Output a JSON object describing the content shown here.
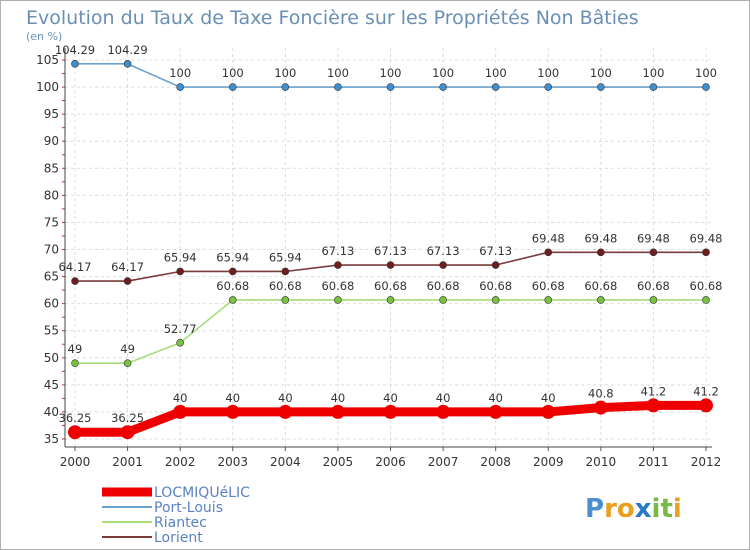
{
  "chart_data": {
    "type": "line",
    "title": "Evolution du Taux de Taxe Foncière sur les Propriétés Non Bâties",
    "ylabel": "(en %)",
    "xlabel": "",
    "ylim": [
      35,
      105
    ],
    "yticks": [
      35,
      40,
      45,
      50,
      55,
      60,
      65,
      70,
      75,
      80,
      85,
      90,
      95,
      100,
      105
    ],
    "grid": true,
    "x": [
      "2000",
      "2001",
      "2002",
      "2003",
      "2004",
      "2005",
      "2006",
      "2007",
      "2008",
      "2009",
      "2010",
      "2011",
      "2012"
    ],
    "series": [
      {
        "name": "LOCMIQUéLIC",
        "color": "#ee0000",
        "emphasis": true,
        "values": [
          36.25,
          36.25,
          40,
          40,
          40,
          40,
          40,
          40,
          40,
          40,
          40.8,
          41.2,
          41.2
        ],
        "labels": [
          "36.25",
          "36.25",
          "40",
          "40",
          "40",
          "40",
          "40",
          "40",
          "40",
          "40",
          "40.8",
          "41.2",
          "41.2"
        ]
      },
      {
        "name": "Port-Louis",
        "color": "#6aa0cc",
        "marker": "#3d8fd0",
        "values": [
          104.29,
          104.29,
          100,
          100,
          100,
          100,
          100,
          100,
          100,
          100,
          100,
          100,
          100
        ],
        "labels": [
          "104.29",
          "104.29",
          "100",
          "100",
          "100",
          "100",
          "100",
          "100",
          "100",
          "100",
          "100",
          "100",
          "100"
        ]
      },
      {
        "name": "Riantec",
        "color": "#a8dc78",
        "marker": "#78c23e",
        "values": [
          49,
          49,
          52.77,
          60.68,
          60.68,
          60.68,
          60.68,
          60.68,
          60.68,
          60.68,
          60.68,
          60.68,
          60.68
        ],
        "labels": [
          "49",
          "49",
          "52.77",
          "60.68",
          "60.68",
          "60.68",
          "60.68",
          "60.68",
          "60.68",
          "60.68",
          "60.68",
          "60.68",
          "60.68"
        ]
      },
      {
        "name": "Lorient",
        "color": "#7a3a3a",
        "marker": "#6e1e1e",
        "values": [
          64.17,
          64.17,
          65.94,
          65.94,
          65.94,
          67.13,
          67.13,
          67.13,
          67.13,
          69.48,
          69.48,
          69.48,
          69.48
        ],
        "labels": [
          "64.17",
          "64.17",
          "65.94",
          "65.94",
          "65.94",
          "67.13",
          "67.13",
          "67.13",
          "67.13",
          "69.48",
          "69.48",
          "69.48",
          "69.48"
        ]
      }
    ]
  },
  "logo": {
    "text": "Proxiti",
    "letter_colors": [
      "#4a90d0",
      "#e8a020",
      "#e8a020",
      "#2878c8",
      "#7ab848",
      "#7ab848",
      "#e8a020"
    ]
  }
}
